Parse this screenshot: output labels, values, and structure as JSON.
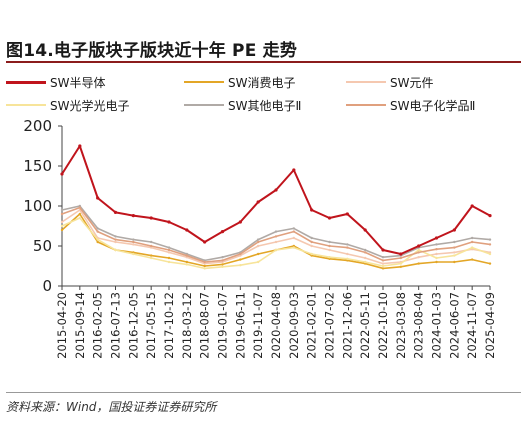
{
  "title": "图14.电子版块子版块近十年 PE 走势",
  "source": "资料来源：Wind，国投证券证券研究所",
  "chart_data": {
    "type": "line",
    "title": "图14.电子版块子版块近十年 PE 走势",
    "xlabel": "",
    "ylabel": "",
    "ylim": [
      0,
      200
    ],
    "yticks": [
      0,
      50,
      100,
      150,
      200
    ],
    "grid": false,
    "legend_position": "top",
    "categories": [
      "2015-04-20",
      "2015-09-14",
      "2016-02-05",
      "2016-07-13",
      "2016-12-05",
      "2017-05-15",
      "2017-10-12",
      "2018-03-12",
      "2018-08-07",
      "2019-01-07",
      "2019-06-11",
      "2019-11-07",
      "2020-04-08",
      "2020-09-03",
      "2021-02-01",
      "2021-07-02",
      "2021-12-06",
      "2022-05-11",
      "2022-10-10",
      "2023-03-08",
      "2023-08-04",
      "2024-01-03",
      "2024-06-07",
      "2024-11-07",
      "2025-04-09"
    ],
    "series": [
      {
        "name": "SW半导体",
        "color": "#c0141c",
        "values": [
          140,
          175,
          110,
          92,
          88,
          85,
          80,
          70,
          55,
          68,
          80,
          105,
          120,
          145,
          95,
          85,
          90,
          70,
          45,
          40,
          50,
          60,
          70,
          100,
          88
        ]
      },
      {
        "name": "SW消费电子",
        "color": "#e3a626",
        "values": [
          70,
          90,
          55,
          45,
          42,
          38,
          35,
          30,
          25,
          27,
          33,
          40,
          45,
          50,
          38,
          34,
          32,
          28,
          22,
          24,
          28,
          30,
          30,
          33,
          28
        ]
      },
      {
        "name": "SW元件",
        "color": "#f5c8b0",
        "values": [
          80,
          95,
          60,
          55,
          52,
          48,
          42,
          36,
          28,
          30,
          38,
          50,
          55,
          60,
          50,
          45,
          40,
          35,
          28,
          30,
          36,
          40,
          42,
          46,
          42
        ]
      },
      {
        "name": "SW光学光电子",
        "color": "#f7e49a",
        "values": [
          75,
          85,
          58,
          45,
          40,
          35,
          30,
          27,
          22,
          24,
          26,
          30,
          45,
          48,
          40,
          36,
          34,
          30,
          25,
          28,
          45,
          35,
          38,
          48,
          40
        ]
      },
      {
        "name": "SW其他电子Ⅱ",
        "color": "#b0aaa6",
        "values": [
          95,
          100,
          72,
          62,
          58,
          55,
          48,
          40,
          32,
          36,
          42,
          58,
          68,
          72,
          60,
          55,
          52,
          45,
          36,
          38,
          48,
          52,
          55,
          60,
          58
        ]
      },
      {
        "name": "SW电子化学品Ⅱ",
        "color": "#e0a07e",
        "values": [
          90,
          98,
          68,
          58,
          55,
          50,
          45,
          38,
          30,
          32,
          40,
          55,
          62,
          68,
          55,
          50,
          48,
          42,
          32,
          35,
          42,
          46,
          48,
          55,
          52
        ]
      }
    ]
  }
}
